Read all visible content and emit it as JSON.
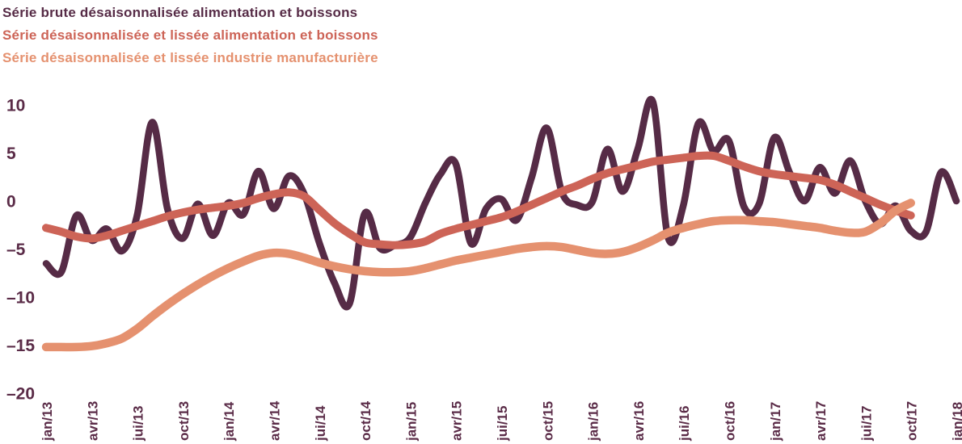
{
  "chart_data": {
    "type": "line",
    "title": "",
    "x_tick_labels": [
      "jan/13",
      "avr/13",
      "jui/13",
      "oct/13",
      "jan/14",
      "avr/14",
      "jui/14",
      "oct/14",
      "jan/15",
      "avr/15",
      "jui/15",
      "oct/15",
      "jan/16",
      "avr/16",
      "jui/16",
      "oct/16",
      "jan/17",
      "avr/17",
      "jui/17",
      "oct/17",
      "jan/18"
    ],
    "months_per_tick": 3,
    "yticks": [
      10,
      5,
      0,
      -5,
      -10,
      -15,
      -20
    ],
    "ylim": [
      -20,
      10
    ],
    "grid": false,
    "legend_position": "top-left",
    "axis_tick_color": "#5a2b47",
    "background_color": "#ffffff",
    "series": [
      {
        "name": "Série brute désaisonnalisée alimentation et boissons",
        "color": "#562b46",
        "stroke_width": 8.5,
        "values": [
          -6.5,
          -7.4,
          -1.5,
          -4.1,
          -2.9,
          -5.2,
          -1.5,
          8.2,
          -0.8,
          -3.9,
          -0.3,
          -3.6,
          -0.2,
          -1.4,
          3.1,
          -0.8,
          2.6,
          0.8,
          -4.3,
          -8.5,
          -10.7,
          -1.3,
          -4.9,
          -4.6,
          -3.8,
          -0.2,
          2.8,
          3.9,
          -4.4,
          -0.8,
          0.2,
          -2.0,
          2.4,
          7.6,
          0.9,
          -0.4,
          -0.1,
          5.4,
          1.0,
          5.4,
          10.3,
          -3.8,
          -0.5,
          8.1,
          5.2,
          6.3,
          -0.6,
          -0.3,
          6.6,
          3.0,
          0.0,
          3.5,
          0.8,
          4.2,
          0.0,
          -2.4,
          -0.5,
          -3.1,
          -3.2,
          3.0,
          0.0
        ]
      },
      {
        "name": "Série désaisonnalisée et lissée alimentation et boissons",
        "color": "#cd6457",
        "stroke_width": 10,
        "values": [
          -2.8,
          -3.2,
          -3.7,
          -3.9,
          -3.6,
          -3.1,
          -2.6,
          -2.1,
          -1.6,
          -1.2,
          -0.9,
          -0.7,
          -0.5,
          -0.2,
          0.3,
          0.7,
          0.9,
          0.5,
          -0.9,
          -2.3,
          -3.4,
          -4.3,
          -4.5,
          -4.6,
          -4.5,
          -4.2,
          -3.4,
          -2.9,
          -2.5,
          -2.1,
          -1.7,
          -1.1,
          -0.4,
          0.3,
          1.0,
          1.6,
          2.3,
          2.9,
          3.3,
          3.7,
          4.1,
          4.3,
          4.5,
          4.7,
          4.7,
          4.2,
          3.6,
          3.1,
          2.8,
          2.6,
          2.4,
          2.2,
          1.7,
          1.0,
          0.3,
          -0.4,
          -1.0,
          -1.5
        ]
      },
      {
        "name": "Série désaisonnalisée et lissée industrie manufacturière",
        "color": "#e5916f",
        "stroke_width": 10.5,
        "values": [
          -15.2,
          -15.2,
          -15.2,
          -15.1,
          -14.8,
          -14.3,
          -13.3,
          -12.0,
          -10.8,
          -9.7,
          -8.7,
          -7.8,
          -7.0,
          -6.3,
          -5.7,
          -5.4,
          -5.5,
          -5.9,
          -6.4,
          -6.8,
          -7.1,
          -7.3,
          -7.4,
          -7.4,
          -7.3,
          -7.0,
          -6.6,
          -6.2,
          -5.9,
          -5.6,
          -5.3,
          -5.0,
          -4.8,
          -4.7,
          -4.8,
          -5.1,
          -5.4,
          -5.5,
          -5.3,
          -4.8,
          -4.1,
          -3.3,
          -2.8,
          -2.4,
          -2.1,
          -2.0,
          -2.0,
          -2.1,
          -2.2,
          -2.4,
          -2.6,
          -2.8,
          -3.1,
          -3.3,
          -3.2,
          -2.3,
          -1.0,
          -0.2
        ]
      }
    ]
  }
}
